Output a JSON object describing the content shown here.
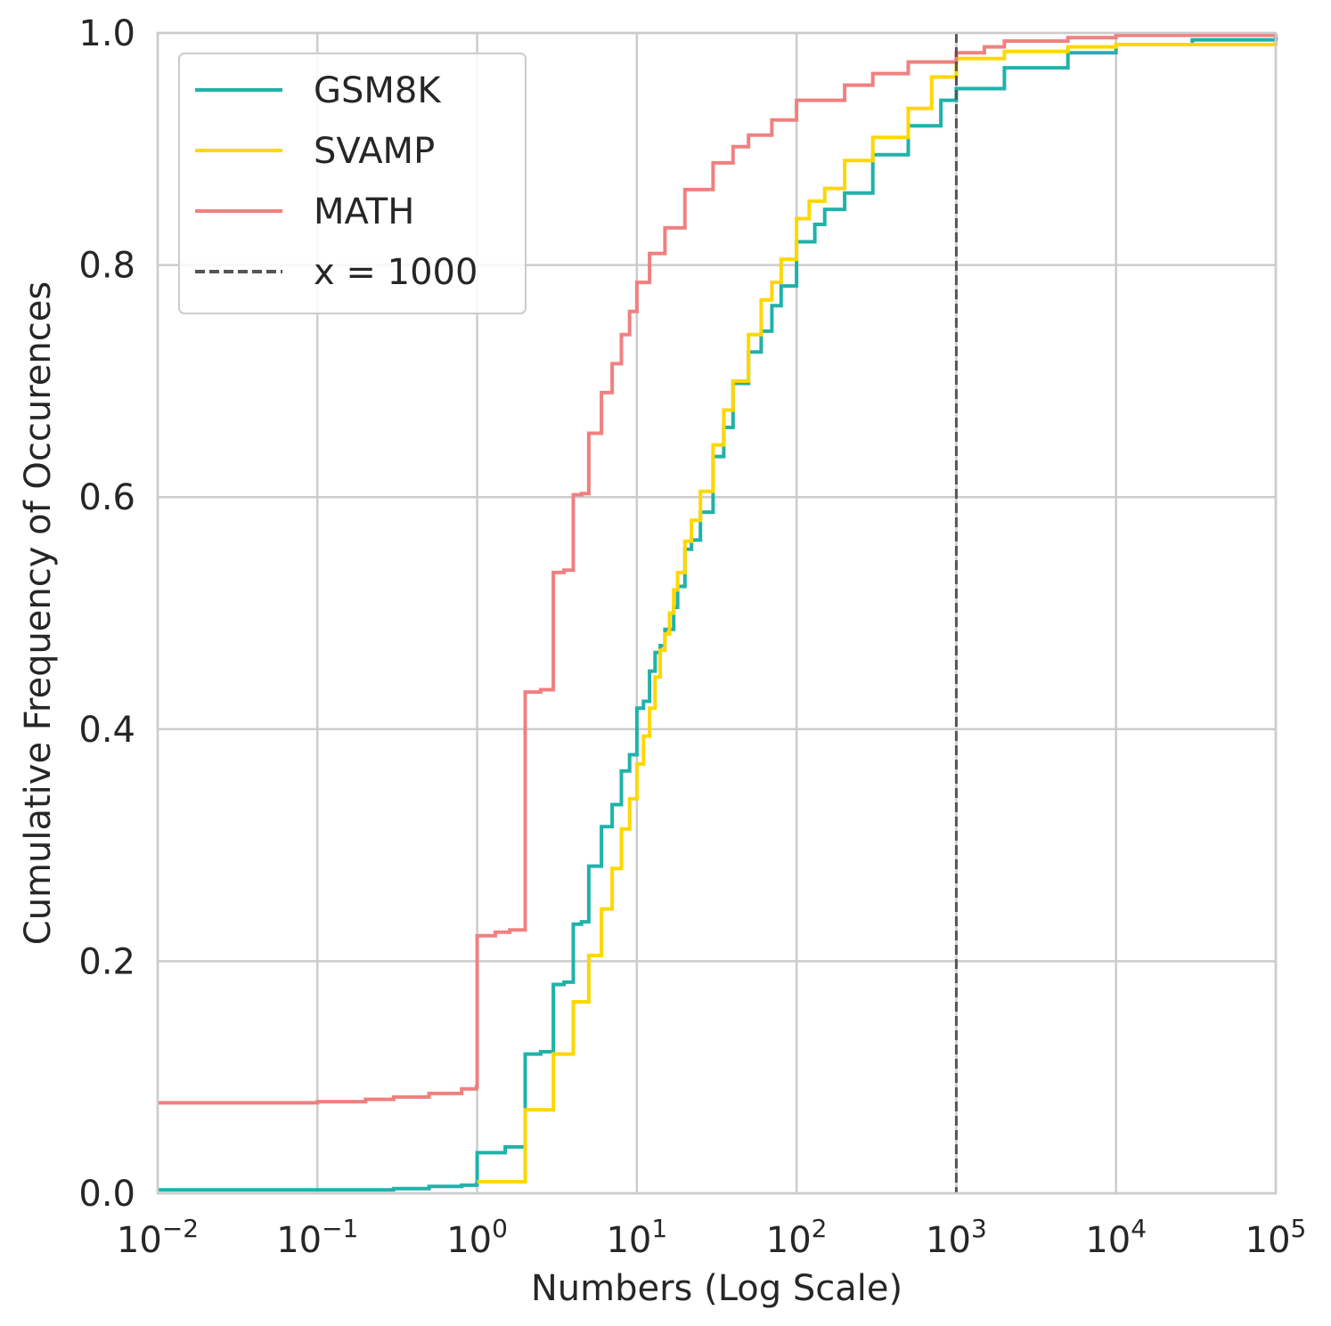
{
  "chart_data": {
    "type": "line",
    "xlabel": "Numbers (Log Scale)",
    "ylabel": "Cumulative Frequency of Occurences",
    "x_scale": "log",
    "xlim": [
      0.01,
      100000
    ],
    "ylim": [
      0,
      1
    ],
    "x_ticks": [
      {
        "value": 0.01,
        "base": "10",
        "exp": "−2"
      },
      {
        "value": 0.1,
        "base": "10",
        "exp": "−1"
      },
      {
        "value": 1,
        "base": "10",
        "exp": "0"
      },
      {
        "value": 10,
        "base": "10",
        "exp": "1"
      },
      {
        "value": 100,
        "base": "10",
        "exp": "2"
      },
      {
        "value": 1000,
        "base": "10",
        "exp": "3"
      },
      {
        "value": 10000,
        "base": "10",
        "exp": "4"
      },
      {
        "value": 100000,
        "base": "10",
        "exp": "5"
      }
    ],
    "y_ticks": [
      {
        "value": 0.0,
        "label": "0.0"
      },
      {
        "value": 0.2,
        "label": "0.2"
      },
      {
        "value": 0.4,
        "label": "0.4"
      },
      {
        "value": 0.6,
        "label": "0.6"
      },
      {
        "value": 0.8,
        "label": "0.8"
      },
      {
        "value": 1.0,
        "label": "1.0"
      }
    ],
    "grid": true,
    "legend_position": "upper-left",
    "series": [
      {
        "name": "GSM8K",
        "color": "#20b2aa",
        "style": "step",
        "points": [
          [
            0.01,
            0.003
          ],
          [
            0.1,
            0.003
          ],
          [
            0.3,
            0.004
          ],
          [
            0.5,
            0.006
          ],
          [
            0.8,
            0.007
          ],
          [
            0.99,
            0.008
          ],
          [
            1,
            0.035
          ],
          [
            1.5,
            0.04
          ],
          [
            2,
            0.12
          ],
          [
            2.5,
            0.122
          ],
          [
            3,
            0.18
          ],
          [
            3.5,
            0.182
          ],
          [
            4,
            0.232
          ],
          [
            4.5,
            0.234
          ],
          [
            5,
            0.282
          ],
          [
            6,
            0.316
          ],
          [
            7,
            0.335
          ],
          [
            8,
            0.364
          ],
          [
            9,
            0.378
          ],
          [
            10,
            0.418
          ],
          [
            11,
            0.424
          ],
          [
            12,
            0.45
          ],
          [
            13,
            0.466
          ],
          [
            14,
            0.472
          ],
          [
            15,
            0.486
          ],
          [
            17,
            0.505
          ],
          [
            18,
            0.523
          ],
          [
            20,
            0.555
          ],
          [
            22,
            0.563
          ],
          [
            25,
            0.587
          ],
          [
            30,
            0.635
          ],
          [
            35,
            0.66
          ],
          [
            40,
            0.698
          ],
          [
            50,
            0.725
          ],
          [
            60,
            0.743
          ],
          [
            70,
            0.765
          ],
          [
            80,
            0.782
          ],
          [
            100,
            0.82
          ],
          [
            130,
            0.835
          ],
          [
            150,
            0.848
          ],
          [
            200,
            0.862
          ],
          [
            300,
            0.895
          ],
          [
            500,
            0.92
          ],
          [
            800,
            0.942
          ],
          [
            1000,
            0.952
          ],
          [
            2000,
            0.97
          ],
          [
            5000,
            0.983
          ],
          [
            10000,
            0.99
          ],
          [
            30000,
            0.994
          ],
          [
            100000,
            0.997
          ]
        ]
      },
      {
        "name": "SVAMP",
        "color": "#ffd700",
        "style": "step",
        "points": [
          [
            1,
            0.01
          ],
          [
            2,
            0.072
          ],
          [
            3,
            0.12
          ],
          [
            4,
            0.165
          ],
          [
            5,
            0.205
          ],
          [
            6,
            0.245
          ],
          [
            7,
            0.28
          ],
          [
            8,
            0.314
          ],
          [
            9,
            0.34
          ],
          [
            10,
            0.37
          ],
          [
            11,
            0.394
          ],
          [
            12,
            0.418
          ],
          [
            13,
            0.445
          ],
          [
            14,
            0.468
          ],
          [
            15,
            0.482
          ],
          [
            16,
            0.5
          ],
          [
            17,
            0.52
          ],
          [
            18,
            0.535
          ],
          [
            20,
            0.562
          ],
          [
            22,
            0.58
          ],
          [
            25,
            0.605
          ],
          [
            30,
            0.645
          ],
          [
            35,
            0.675
          ],
          [
            40,
            0.7
          ],
          [
            50,
            0.74
          ],
          [
            60,
            0.77
          ],
          [
            70,
            0.785
          ],
          [
            80,
            0.805
          ],
          [
            100,
            0.84
          ],
          [
            120,
            0.855
          ],
          [
            150,
            0.866
          ],
          [
            200,
            0.89
          ],
          [
            300,
            0.91
          ],
          [
            500,
            0.935
          ],
          [
            700,
            0.962
          ],
          [
            1000,
            0.978
          ],
          [
            2000,
            0.984
          ],
          [
            5000,
            0.988
          ],
          [
            10000,
            0.99
          ],
          [
            100000,
            0.993
          ]
        ]
      },
      {
        "name": "MATH",
        "color": "#f08080",
        "style": "step",
        "points": [
          [
            0.01,
            0.078
          ],
          [
            0.1,
            0.079
          ],
          [
            0.2,
            0.081
          ],
          [
            0.3,
            0.083
          ],
          [
            0.5,
            0.086
          ],
          [
            0.8,
            0.09
          ],
          [
            0.99,
            0.092
          ],
          [
            1,
            0.222
          ],
          [
            1.3,
            0.225
          ],
          [
            1.6,
            0.227
          ],
          [
            2,
            0.432
          ],
          [
            2.5,
            0.434
          ],
          [
            3,
            0.535
          ],
          [
            3.5,
            0.537
          ],
          [
            4,
            0.602
          ],
          [
            4.5,
            0.603
          ],
          [
            5,
            0.655
          ],
          [
            6,
            0.69
          ],
          [
            7,
            0.715
          ],
          [
            8,
            0.74
          ],
          [
            9,
            0.76
          ],
          [
            10,
            0.785
          ],
          [
            12,
            0.81
          ],
          [
            15,
            0.832
          ],
          [
            20,
            0.865
          ],
          [
            30,
            0.888
          ],
          [
            40,
            0.902
          ],
          [
            50,
            0.912
          ],
          [
            70,
            0.925
          ],
          [
            100,
            0.942
          ],
          [
            200,
            0.955
          ],
          [
            300,
            0.965
          ],
          [
            500,
            0.975
          ],
          [
            1000,
            0.983
          ],
          [
            1500,
            0.988
          ],
          [
            2000,
            0.993
          ],
          [
            5000,
            0.996
          ],
          [
            10000,
            0.998
          ],
          [
            100000,
            0.999
          ]
        ]
      }
    ],
    "reference_lines": [
      {
        "name": "x = 1000",
        "x": 1000,
        "color": "#555555",
        "style": "dashed"
      }
    ]
  }
}
